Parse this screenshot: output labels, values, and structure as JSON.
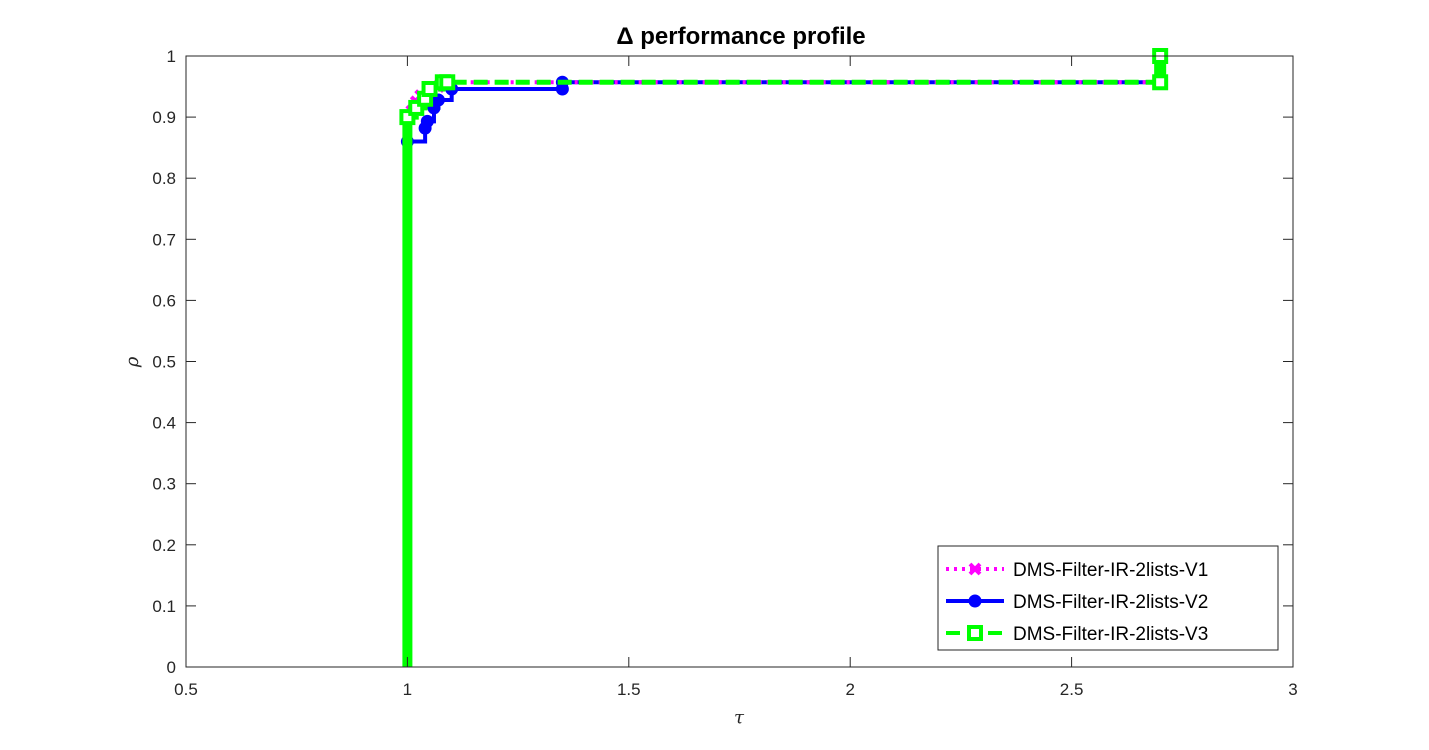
{
  "chart_data": {
    "type": "line",
    "title": "Δ performance profile",
    "xlabel": "τ",
    "ylabel": "ρ",
    "xlim": [
      0.5,
      3
    ],
    "ylim": [
      0,
      1
    ],
    "xticks": [
      "0.5",
      "1",
      "1.5",
      "2",
      "2.5",
      "3"
    ],
    "yticks": [
      "0",
      "0.1",
      "0.2",
      "0.3",
      "0.4",
      "0.5",
      "0.6",
      "0.7",
      "0.8",
      "0.9",
      "1"
    ],
    "grid": false,
    "legend_position": "bottom-right",
    "series": [
      {
        "name": "DMS-Filter-IR-2lists-V1",
        "color": "#ff00ff",
        "line_style": "dotted",
        "marker": "x",
        "x": [
          1.0,
          1.0,
          1.0,
          1.01,
          1.02,
          1.03,
          1.05,
          1.07,
          1.09,
          2.7,
          2.7
        ],
        "y": [
          0.0,
          0.5,
          0.9,
          0.91,
          0.925,
          0.935,
          0.945,
          0.95,
          0.957,
          0.957,
          1.0
        ]
      },
      {
        "name": "DMS-Filter-IR-2lists-V2",
        "color": "#0000ff",
        "line_style": "solid",
        "marker": "o",
        "x": [
          1.0,
          1.0,
          1.0,
          1.04,
          1.045,
          1.06,
          1.07,
          1.1,
          1.35,
          1.35,
          2.7,
          2.7
        ],
        "y": [
          0.0,
          0.5,
          0.86,
          0.882,
          0.893,
          0.915,
          0.928,
          0.946,
          0.946,
          0.957,
          0.957,
          1.0
        ]
      },
      {
        "name": "DMS-Filter-IR-2lists-V3",
        "color": "#00ff00",
        "line_style": "dashed",
        "marker": "s",
        "x": [
          1.0,
          1.0,
          1.0,
          1.02,
          1.04,
          1.05,
          1.08,
          1.09,
          2.7,
          2.7
        ],
        "y": [
          0.0,
          0.5,
          0.9,
          0.915,
          0.93,
          0.946,
          0.957,
          0.957,
          0.957,
          1.0
        ]
      }
    ]
  }
}
